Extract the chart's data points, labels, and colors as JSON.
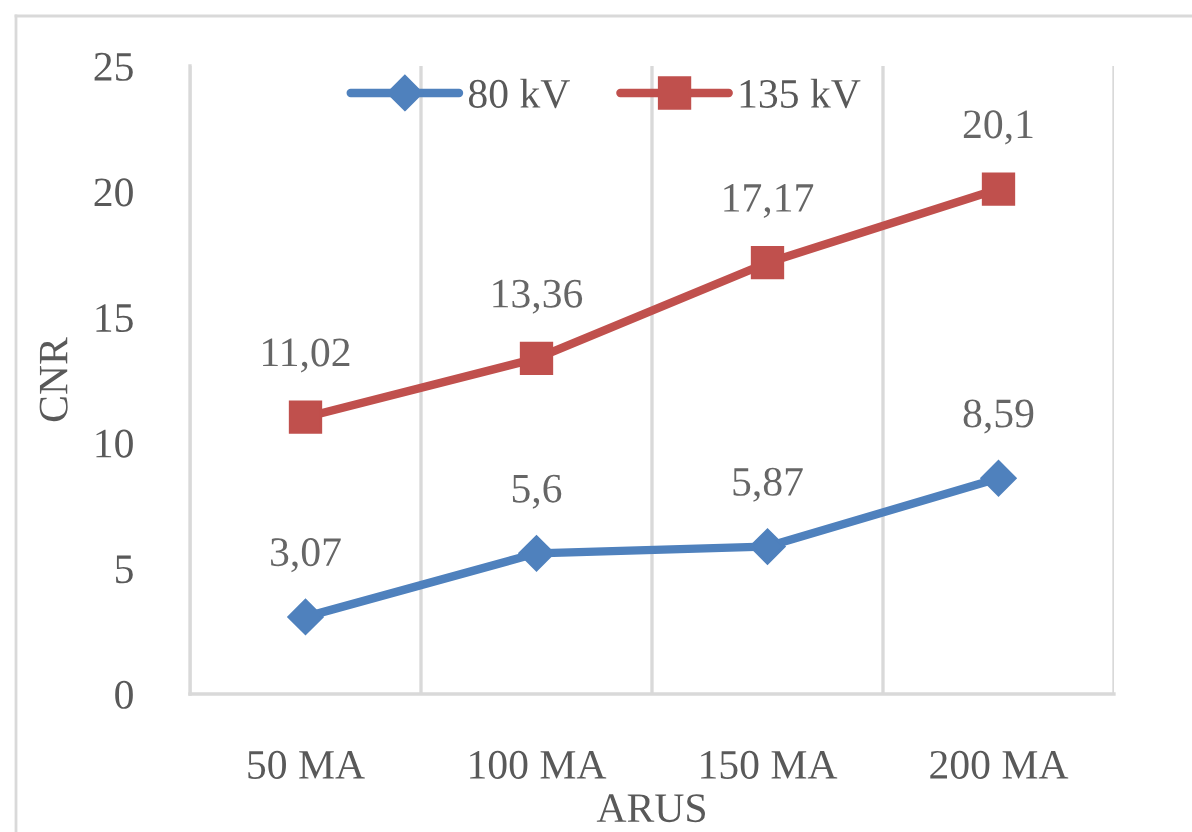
{
  "chart_data": {
    "type": "line",
    "xlabel": "ARUS",
    "ylabel": "CNR",
    "categories": [
      "50 MA",
      "100 MA",
      "150 MA",
      "200 MA"
    ],
    "series": [
      {
        "name": "80 kV",
        "color": "#4f81bd",
        "marker": "diamond",
        "values": [
          3.07,
          5.6,
          5.87,
          8.59
        ],
        "value_labels": [
          "3,07",
          "5,6",
          "5,87",
          "8,59"
        ]
      },
      {
        "name": "135 kV",
        "color": "#c0504d",
        "marker": "square",
        "values": [
          11.02,
          13.36,
          17.17,
          20.1
        ],
        "value_labels": [
          "11,02",
          "13,36",
          "17,17",
          "20,1"
        ]
      }
    ],
    "ylim": [
      0,
      25
    ],
    "yticks": [
      0,
      5,
      10,
      15,
      20,
      25
    ],
    "grid": "x",
    "legend": "top"
  }
}
